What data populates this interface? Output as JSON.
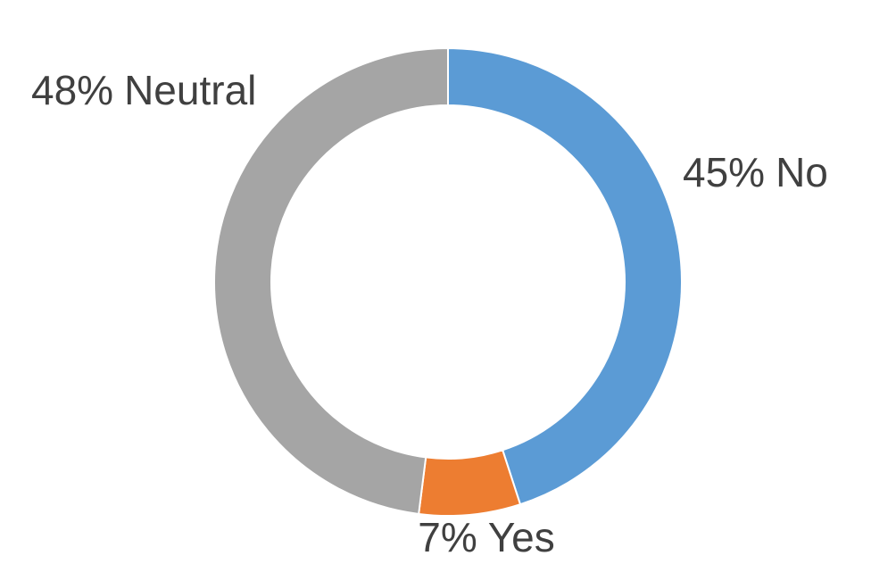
{
  "chart_data": {
    "type": "donut",
    "categories": [
      "No",
      "Yes",
      "Neutral"
    ],
    "values": [
      45,
      7,
      48
    ],
    "value_labels": [
      "45%",
      "7%",
      "48%"
    ],
    "colors": [
      "#5b9bd5",
      "#ed7d31",
      "#a5a5a5"
    ]
  }
}
